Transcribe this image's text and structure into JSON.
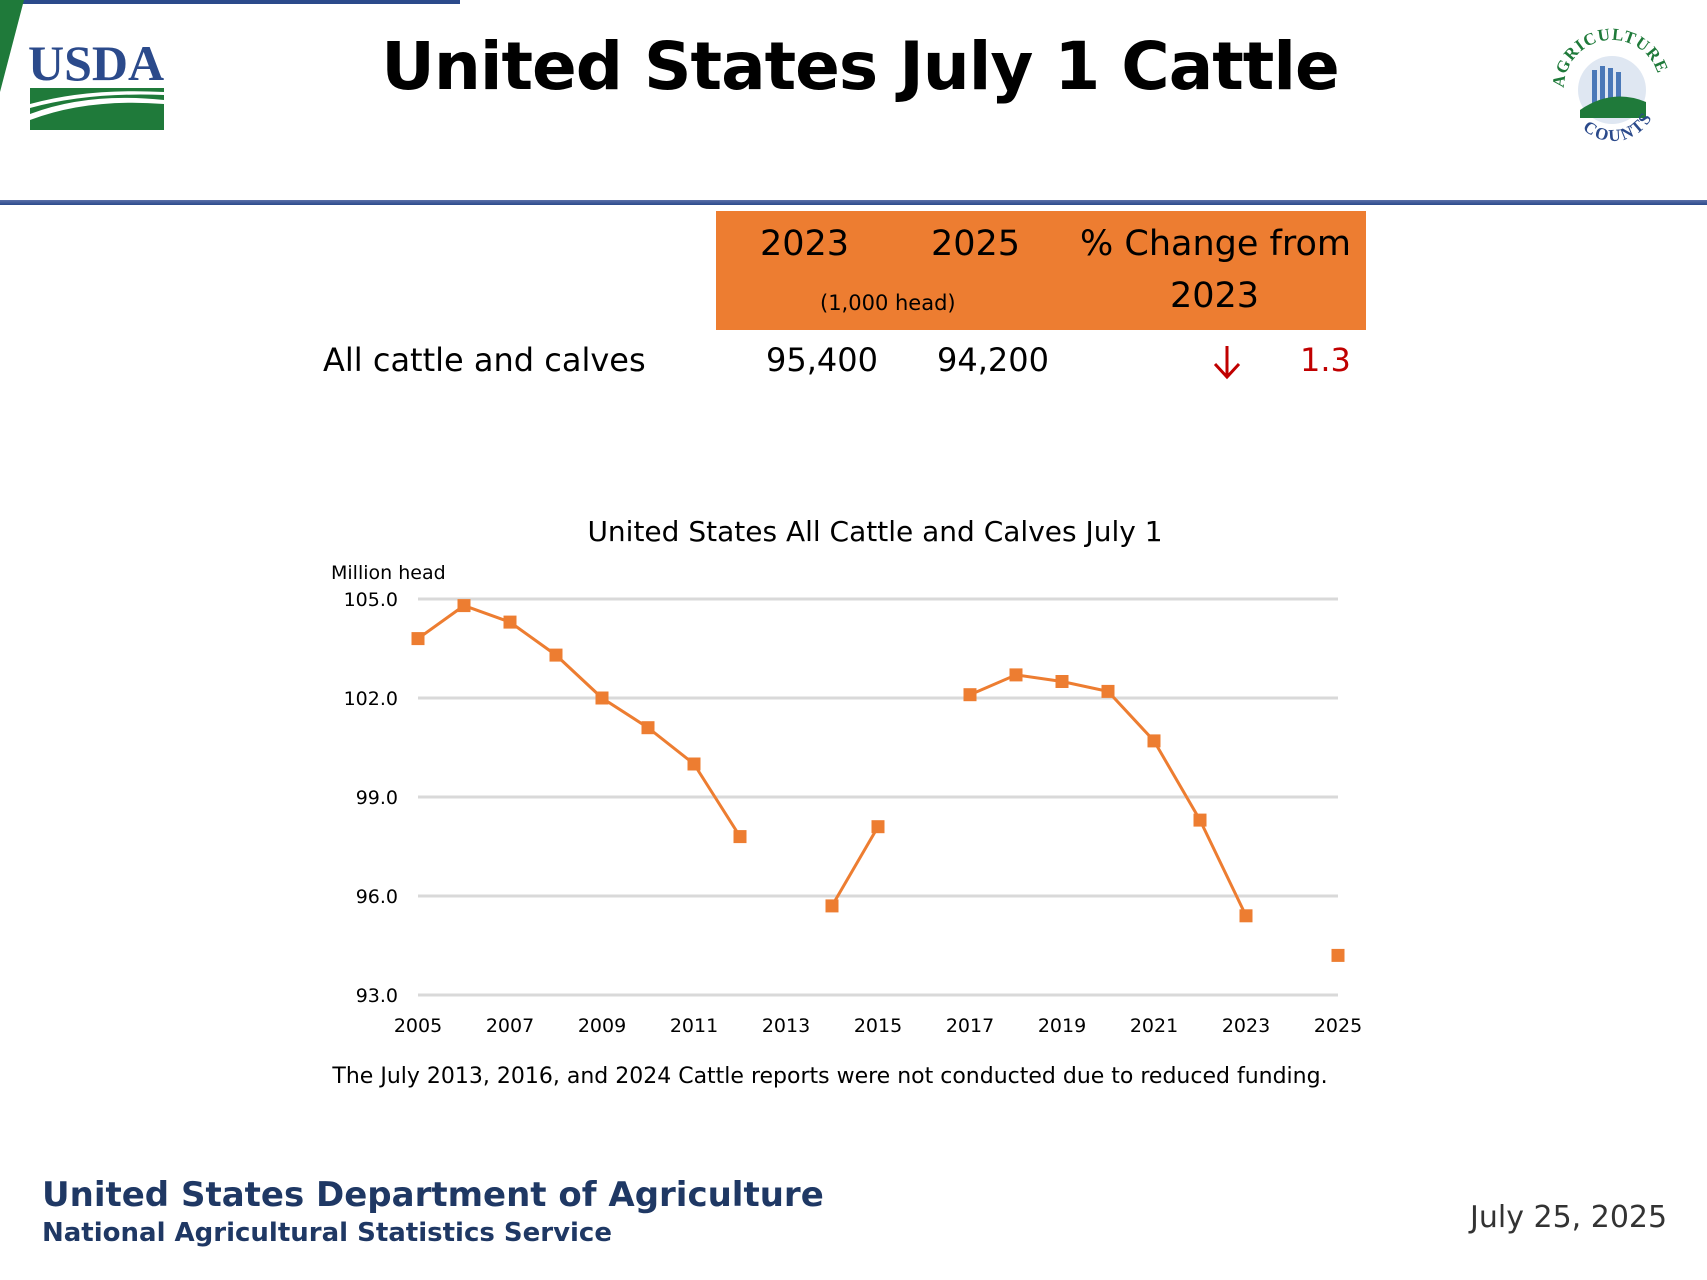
{
  "header": {
    "title": "United States July 1 Cattle",
    "usda_logo_text": "USDA",
    "ag_logo_text_top": "AGRICULTURE",
    "ag_logo_text_bottom": "COUNTS"
  },
  "summary_table": {
    "col_2023": "2023",
    "col_2025": "2025",
    "col_change_line1": "% Change from",
    "col_change_line2": "2023",
    "units": "(1,000 head)",
    "row_label": "All cattle and calves",
    "value_2023": "95,400",
    "value_2025": "94,200",
    "change_value": "1.3",
    "change_direction_icon": "arrow-down-icon"
  },
  "chart_data": {
    "type": "line",
    "title": "United States All Cattle and Calves July 1",
    "ylabel": "Million head",
    "xlabel": "",
    "ylim": [
      93.0,
      105.0
    ],
    "y_ticks": [
      "105.0",
      "102.0",
      "99.0",
      "96.0",
      "93.0"
    ],
    "x_tick_labels": [
      "2005",
      "2007",
      "2009",
      "2011",
      "2013",
      "2015",
      "2017",
      "2019",
      "2021",
      "2023",
      "2025"
    ],
    "x_range": [
      2005,
      2025
    ],
    "grid": true,
    "series": [
      {
        "points": [
          {
            "x": 2005,
            "y": 103.8
          },
          {
            "x": 2006,
            "y": 104.8
          },
          {
            "x": 2007,
            "y": 104.3
          },
          {
            "x": 2008,
            "y": 103.3
          },
          {
            "x": 2009,
            "y": 102.0
          },
          {
            "x": 2010,
            "y": 101.1
          },
          {
            "x": 2011,
            "y": 100.0
          },
          {
            "x": 2012,
            "y": 97.8
          },
          {
            "x": 2013,
            "y": null
          },
          {
            "x": 2014,
            "y": 95.7
          },
          {
            "x": 2015,
            "y": 98.1
          },
          {
            "x": 2016,
            "y": null
          },
          {
            "x": 2017,
            "y": 102.1
          },
          {
            "x": 2018,
            "y": 102.7
          },
          {
            "x": 2019,
            "y": 102.5
          },
          {
            "x": 2020,
            "y": 102.2
          },
          {
            "x": 2021,
            "y": 100.7
          },
          {
            "x": 2022,
            "y": 98.3
          },
          {
            "x": 2023,
            "y": 95.4
          },
          {
            "x": 2024,
            "y": null
          },
          {
            "x": 2025,
            "y": 94.2
          }
        ]
      }
    ],
    "color": "#ed7d31",
    "note": "The July 2013, 2016, and 2024 Cattle reports were not conducted due to reduced funding."
  },
  "footer": {
    "org_line1": "United States Department of Agriculture",
    "org_line2": "National Agricultural Statistics Service",
    "date": "July 25, 2025"
  },
  "colors": {
    "accent": "#ed7d31",
    "decline": "#c00000",
    "navy": "#1f3864",
    "usda_blue": "#2b4a8b",
    "usda_green": "#1f7a3a"
  }
}
